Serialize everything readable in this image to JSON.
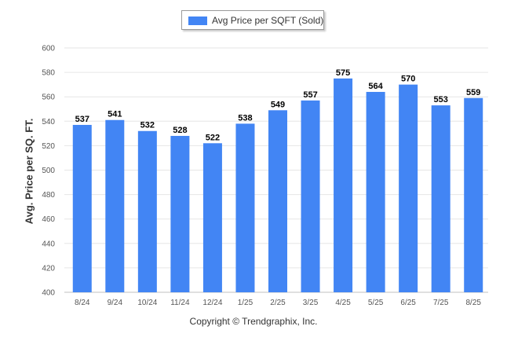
{
  "chart_data": {
    "type": "bar",
    "title": "",
    "xlabel": "",
    "ylabel": "Avg. Price per SQ. FT.",
    "categories": [
      "8/24",
      "9/24",
      "10/24",
      "11/24",
      "12/24",
      "1/25",
      "2/25",
      "3/25",
      "4/25",
      "5/25",
      "6/25",
      "7/25",
      "8/25"
    ],
    "series": [
      {
        "name": "Avg Price per SQFT (Sold)",
        "values": [
          537,
          541,
          532,
          528,
          522,
          538,
          549,
          557,
          575,
          564,
          570,
          553,
          559
        ]
      }
    ],
    "ylim": [
      400,
      600
    ],
    "yticks": [
      400,
      420,
      440,
      460,
      480,
      500,
      520,
      540,
      560,
      580,
      600
    ],
    "grid": true,
    "legend_position": "top-center",
    "bar_color": "#4285f4"
  },
  "footer": {
    "copyright": "Copyright © Trendgraphix, Inc."
  }
}
